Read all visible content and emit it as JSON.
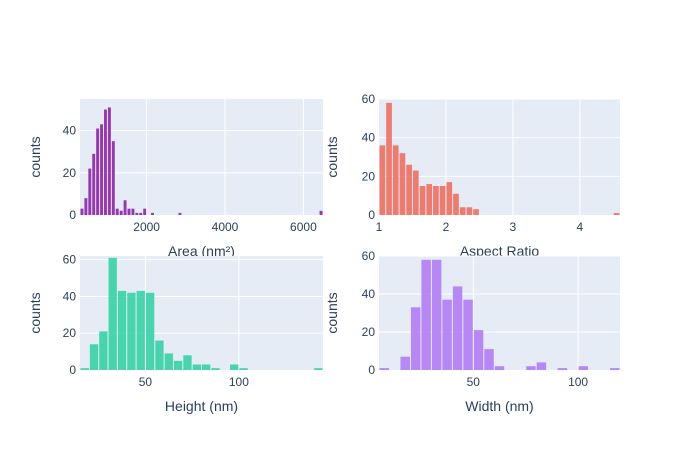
{
  "chart_data": [
    {
      "type": "bar",
      "xlabel": "Area (nm²)",
      "ylabel": "counts",
      "color": "#8e24aa",
      "xlim": [
        300,
        6500
      ],
      "ylim": [
        0,
        55
      ],
      "xticks": [
        2000,
        4000,
        6000
      ],
      "yticks": [
        0,
        20,
        40
      ],
      "bin_width": 100,
      "bin_starts": [
        300,
        400,
        500,
        600,
        700,
        800,
        900,
        1000,
        1100,
        1200,
        1300,
        1400,
        1500,
        1600,
        1700,
        1800,
        1900,
        2000,
        2100,
        2200,
        2800,
        6400
      ],
      "values": [
        3,
        8,
        22,
        29,
        41,
        43,
        50,
        51,
        35,
        3,
        2,
        7,
        3,
        3,
        1,
        1,
        3,
        0,
        1,
        0,
        1,
        2
      ]
    },
    {
      "type": "bar",
      "xlabel": "Aspect Ratio",
      "ylabel": "counts",
      "color": "#ef6f5f",
      "xlim": [
        1,
        4.6
      ],
      "ylim": [
        0,
        60
      ],
      "xticks": [
        1,
        2,
        3,
        4
      ],
      "yticks": [
        0,
        20,
        40,
        60
      ],
      "bin_width": 0.1,
      "bin_starts": [
        1.0,
        1.1,
        1.2,
        1.3,
        1.4,
        1.5,
        1.6,
        1.7,
        1.8,
        1.9,
        2.0,
        2.1,
        2.2,
        2.3,
        2.4,
        4.5
      ],
      "values": [
        36,
        58,
        36,
        32,
        26,
        23,
        15,
        16,
        15,
        15,
        17,
        11,
        4,
        4,
        3,
        1
      ]
    },
    {
      "type": "bar",
      "xlabel": "Height (nm)",
      "ylabel": "counts",
      "color": "#36d3a6",
      "xlim": [
        15,
        145
      ],
      "ylim": [
        0,
        62
      ],
      "xticks": [
        50,
        100
      ],
      "yticks": [
        0,
        20,
        40,
        60
      ],
      "bin_width": 5,
      "bin_starts": [
        15,
        20,
        25,
        30,
        35,
        40,
        45,
        50,
        55,
        60,
        65,
        70,
        75,
        80,
        85,
        90,
        95,
        100,
        105,
        140
      ],
      "values": [
        1,
        14,
        21,
        61,
        43,
        42,
        43,
        42,
        16,
        9,
        5,
        8,
        3,
        3,
        1,
        0,
        3,
        1,
        0,
        1
      ]
    },
    {
      "type": "bar",
      "xlabel": "Width (nm)",
      "ylabel": "counts",
      "color": "#b17df5",
      "xlim": [
        5,
        120
      ],
      "ylim": [
        0,
        60
      ],
      "xticks": [
        50,
        100
      ],
      "yticks": [
        0,
        20,
        40,
        60
      ],
      "bin_width": 5,
      "bin_starts": [
        5,
        10,
        15,
        20,
        25,
        30,
        35,
        40,
        45,
        50,
        55,
        60,
        65,
        70,
        75,
        80,
        85,
        90,
        95,
        100,
        105,
        110,
        115
      ],
      "values": [
        1,
        0,
        7,
        33,
        58,
        58,
        37,
        44,
        37,
        21,
        11,
        2,
        0,
        0,
        2,
        4,
        0,
        1,
        0,
        2,
        0,
        0,
        1
      ]
    }
  ]
}
